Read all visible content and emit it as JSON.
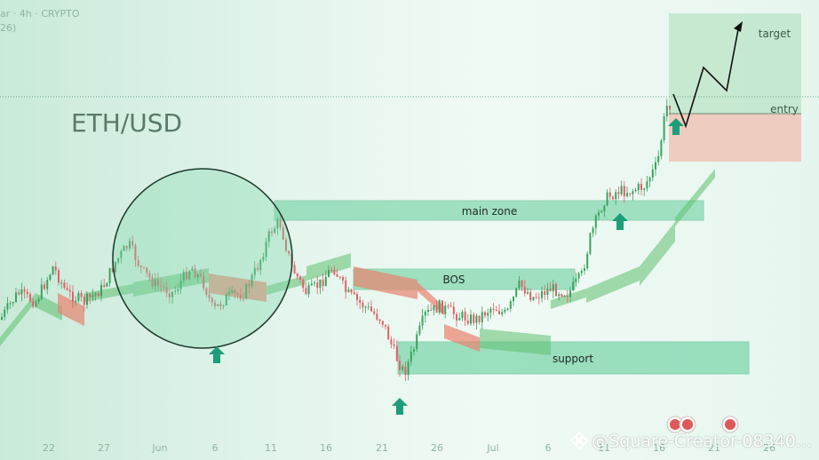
{
  "header": {
    "line1": "ar · 4h · CRYPTO",
    "line2": "26)"
  },
  "watermark": "@Square-Creator-08340...",
  "colors": {
    "accent": "#1e9e78",
    "zone_fill": "#7fd6ad",
    "bull_candle": "#3aa35f",
    "bear_candle": "#e0606a",
    "cloud_green": "#5fbf6f",
    "cloud_red": "#e8826e",
    "target_box": "#b9e4c6",
    "stop_box": "#efc4b6"
  },
  "chart_data": {
    "type": "line",
    "title": "ETH/USD",
    "x_tick_labels": [
      "22",
      "27",
      "Jun",
      "6",
      "11",
      "16",
      "21",
      "26",
      "Jul",
      "6",
      "11",
      "16",
      "21",
      "26"
    ],
    "annotations": {
      "main_zone": "main zone",
      "bos": "BOS",
      "support": "support",
      "entry": "entry",
      "target": "target"
    },
    "markers": [
      "up-arrow",
      "up-arrow",
      "up-arrow",
      "up-arrow"
    ],
    "grid": false,
    "legend": "none"
  }
}
